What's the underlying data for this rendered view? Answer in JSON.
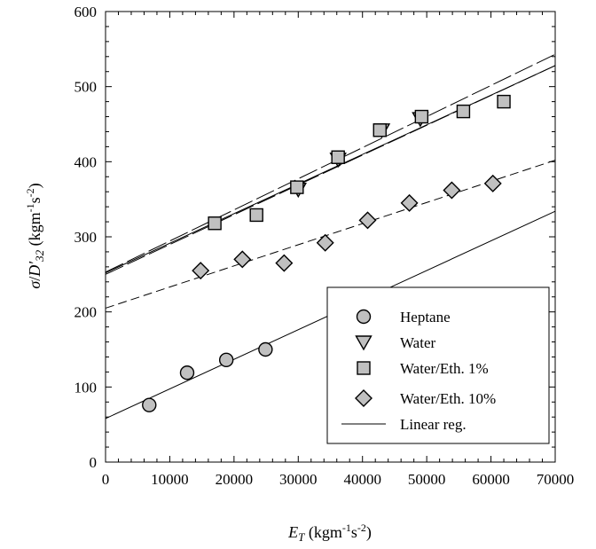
{
  "chart_data": {
    "type": "scatter",
    "title": "",
    "xlabel": {
      "base": "E",
      "sub": "T",
      "unit_open": " (kgm",
      "unit_exp1": "-1",
      "unit_mid": "s",
      "unit_exp2": "-2",
      "unit_close": ")"
    },
    "ylabel": {
      "sigma": "σ",
      "slash": "/",
      "base": "D′",
      "sub": "32",
      "unit_open": " (kgm",
      "unit_exp1": "-1",
      "unit_mid": "s",
      "unit_exp2": "-2",
      "unit_close": ")"
    },
    "xlim": [
      0,
      70000
    ],
    "ylim": [
      0,
      600
    ],
    "x_ticks": [
      "0",
      "10000",
      "20000",
      "30000",
      "40000",
      "50000",
      "60000",
      "70000"
    ],
    "y_ticks": [
      "0",
      "100",
      "200",
      "300",
      "400",
      "500",
      "600"
    ],
    "x_tick_values": [
      0,
      10000,
      20000,
      30000,
      40000,
      50000,
      60000,
      70000
    ],
    "y_tick_values": [
      0,
      100,
      200,
      300,
      400,
      500,
      600
    ],
    "grid": false,
    "legend_position": "bottom-right",
    "marker_fill": "#c0c0c0",
    "series": [
      {
        "name": "Heptane",
        "marker": "circle",
        "points": [
          [
            6800,
            76
          ],
          [
            12700,
            119
          ],
          [
            18800,
            136
          ],
          [
            24900,
            150
          ]
        ]
      },
      {
        "name": "Water",
        "marker": "triangle-down",
        "points": [
          [
            30000,
            363
          ],
          [
            36200,
            403
          ],
          [
            43000,
            442
          ],
          [
            49000,
            457
          ]
        ]
      },
      {
        "name": "Water/Eth. 1%",
        "marker": "square",
        "points": [
          [
            17000,
            318
          ],
          [
            23500,
            329
          ],
          [
            29800,
            366
          ],
          [
            36200,
            406
          ],
          [
            42700,
            442
          ],
          [
            49200,
            460
          ],
          [
            55700,
            467
          ],
          [
            62000,
            480
          ]
        ]
      },
      {
        "name": "Water/Eth. 10%",
        "marker": "diamond",
        "points": [
          [
            14800,
            255
          ],
          [
            21300,
            270
          ],
          [
            27800,
            265
          ],
          [
            34200,
            292
          ],
          [
            40800,
            322
          ],
          [
            47300,
            345
          ],
          [
            53900,
            362
          ],
          [
            60300,
            371
          ]
        ]
      }
    ],
    "regression_lines": [
      {
        "series": "Heptane",
        "style": "solid",
        "from": [
          0,
          58
        ],
        "to": [
          70000,
          334
        ]
      },
      {
        "series": "Water",
        "style": "solid",
        "from": [
          0,
          252
        ],
        "to": [
          70000,
          528
        ]
      },
      {
        "series": "Water/Eth. 1%",
        "style": "long-dash",
        "from": [
          0,
          253
        ],
        "to": [
          70000,
          543
        ]
      },
      {
        "series": "Water/Eth. 1%",
        "style": "long-dash",
        "from": [
          0,
          250
        ],
        "to": [
          70000,
          528
        ]
      },
      {
        "series": "Water/Eth. 10%",
        "style": "dashed",
        "from": [
          0,
          205
        ],
        "to": [
          70000,
          402
        ]
      }
    ],
    "legend": {
      "line_label": "Linear reg."
    }
  }
}
